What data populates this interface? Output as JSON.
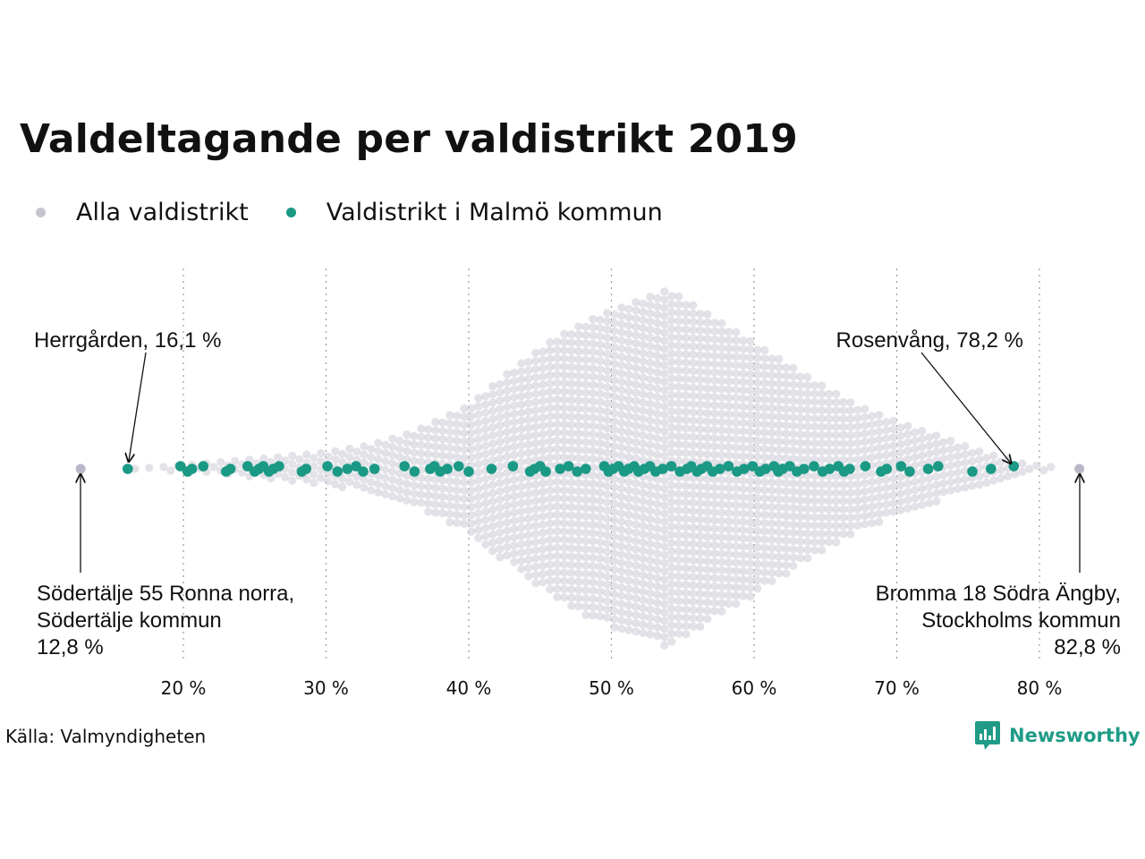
{
  "title": "Valdeltagande per valdistrikt 2019",
  "legend": [
    {
      "label": "Alla valdistrikt",
      "color": "#c5c5d2"
    },
    {
      "label": "Valdistrikt i Malmö kommun",
      "color": "#1a9985"
    }
  ],
  "source": "Källa: Valmyndigheten",
  "brand": {
    "name": "Newsworthy",
    "icon": "newsworthy-logo-icon",
    "color": "#1f9b86"
  },
  "chart_data": {
    "type": "scatter",
    "subtype": "beeswarm",
    "xlim": [
      12,
      84
    ],
    "x_ticks": [
      20,
      30,
      40,
      50,
      60,
      70,
      80
    ],
    "x_tick_labels": [
      "20 %",
      "30 %",
      "40 %",
      "50 %",
      "60 %",
      "70 %",
      "80 %"
    ],
    "grid": "vertical dotted",
    "legend_position": "top-left",
    "series": [
      {
        "name": "Alla valdistrikt",
        "color": "#c5c5d2",
        "distribution_note": "distribution peaks around 54 %",
        "values": [
          12.8,
          82.8
        ]
      },
      {
        "name": "Valdistrikt i Malmö kommun",
        "color": "#1a9985",
        "values": [
          16.1,
          19.8,
          20.3,
          20.6,
          21.4,
          23.0,
          23.3,
          24.5,
          25.0,
          25.3,
          25.6,
          26.0,
          26.3,
          26.7,
          28.3,
          28.6,
          30.1,
          30.8,
          31.5,
          32.1,
          32.6,
          33.4,
          35.5,
          36.2,
          37.3,
          37.6,
          38.0,
          38.5,
          39.3,
          40.0,
          41.6,
          43.1,
          44.3,
          44.6,
          45.0,
          45.4,
          46.4,
          47.0,
          47.6,
          48.2,
          49.5,
          49.8,
          50.1,
          50.5,
          50.9,
          51.2,
          51.6,
          51.9,
          52.3,
          52.7,
          53.1,
          53.6,
          54.2,
          54.8,
          55.3,
          55.6,
          56.0,
          56.3,
          56.7,
          57.1,
          57.6,
          58.2,
          58.8,
          59.3,
          59.9,
          60.4,
          60.8,
          61.4,
          61.7,
          62.0,
          62.5,
          63.0,
          63.5,
          64.2,
          64.8,
          65.3,
          65.9,
          66.3,
          66.7,
          67.8,
          68.9,
          69.3,
          70.3,
          70.9,
          72.2,
          72.9,
          75.3,
          76.6,
          78.2
        ]
      }
    ],
    "annotations": [
      {
        "lines": [
          "Herrgården, 16,1 %"
        ],
        "value": 16.1
      },
      {
        "lines": [
          "Rosenvång, 78,2 %"
        ],
        "value": 78.2
      },
      {
        "lines": [
          "Södertälje 55 Ronna norra,",
          "Södertälje kommun",
          "12,8 %"
        ],
        "value": 12.8
      },
      {
        "lines": [
          "Bromma 18 Södra Ängby,",
          "Stockholms kommun",
          "82,8 %"
        ],
        "value": 82.8
      }
    ]
  }
}
